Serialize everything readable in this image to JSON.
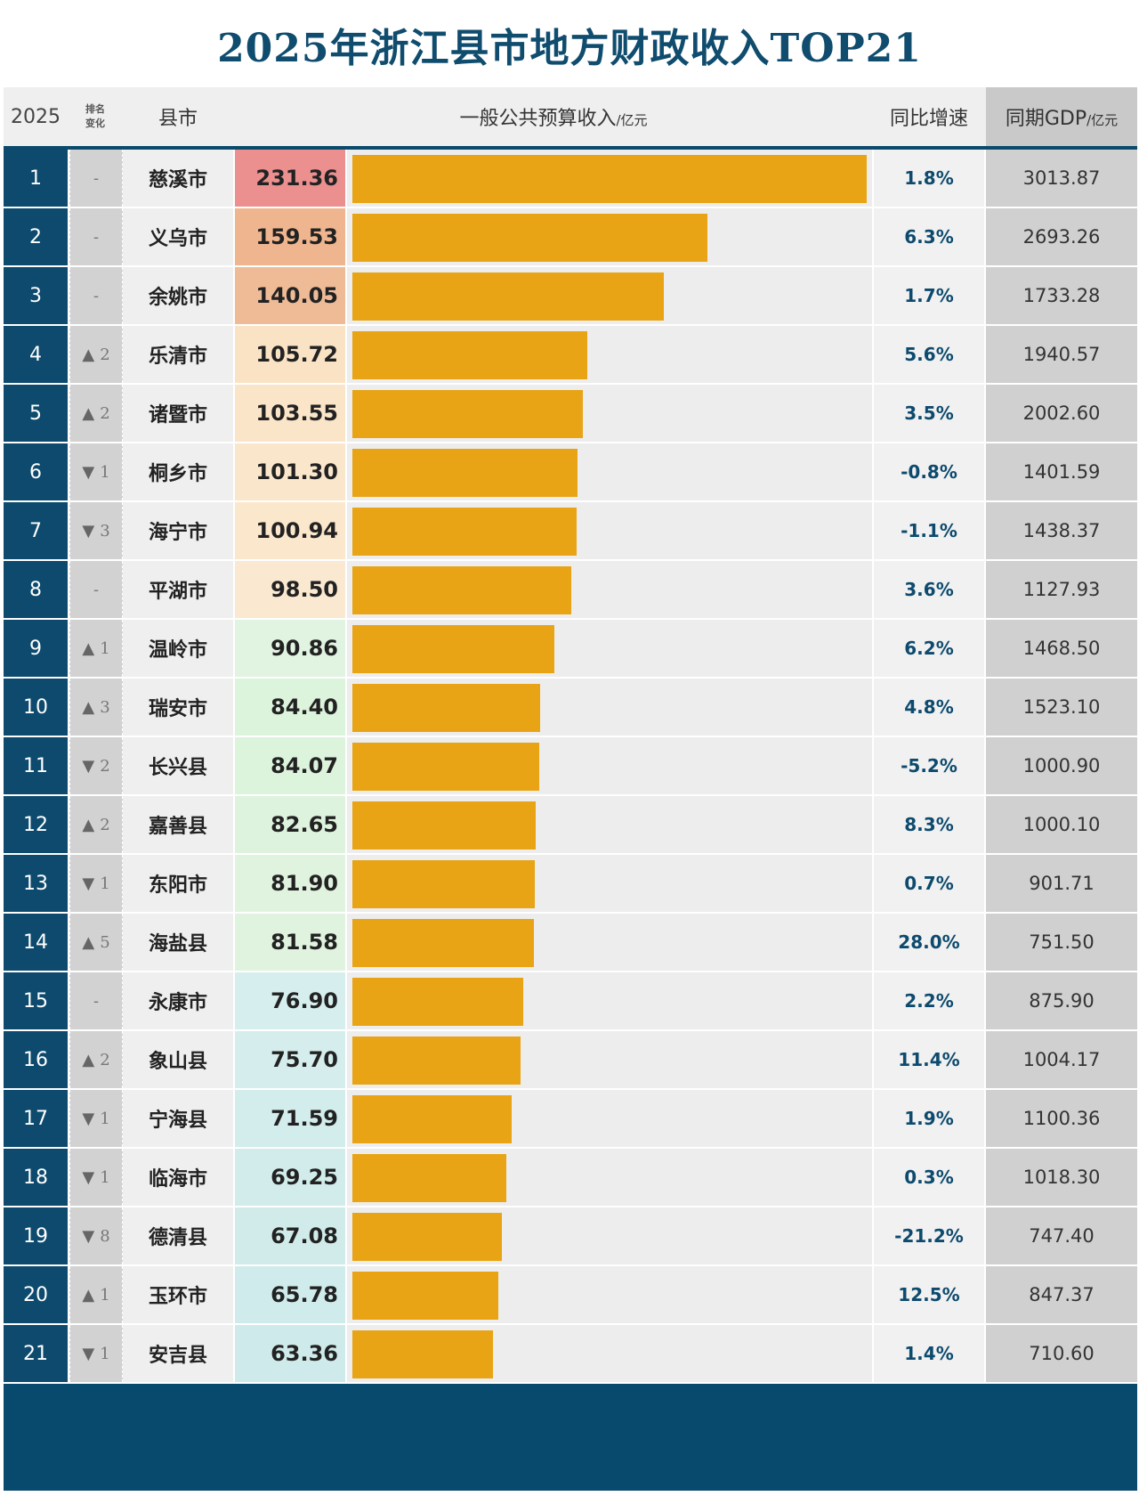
{
  "title": "2025年浙江县市地方财政收入TOP21",
  "header": {
    "year": "2025",
    "rank_change_line1": "排名",
    "rank_change_line2": "变化",
    "name": "县市",
    "revenue": "一般公共预算收入",
    "revenue_unit": "/亿元",
    "growth": "同比增速",
    "gdp": "同期GDP",
    "gdp_unit": "/亿元"
  },
  "chart_data": {
    "type": "bar",
    "title": "2025年浙江县市地方财政收入TOP21",
    "xlabel": "一般公共预算收入/亿元",
    "ylabel": "县市",
    "xlim": [
      0,
      231.36
    ],
    "categories": [
      "慈溪市",
      "义乌市",
      "余姚市",
      "乐清市",
      "诸暨市",
      "桐乡市",
      "海宁市",
      "平湖市",
      "温岭市",
      "瑞安市",
      "长兴县",
      "嘉善县",
      "东阳市",
      "海盐县",
      "永康市",
      "象山县",
      "宁海县",
      "临海市",
      "德清县",
      "玉环市",
      "安吉县"
    ],
    "values": [
      231.36,
      159.53,
      140.05,
      105.72,
      103.55,
      101.3,
      100.94,
      98.5,
      90.86,
      84.4,
      84.07,
      82.65,
      81.9,
      81.58,
      76.9,
      75.7,
      71.59,
      69.25,
      67.08,
      65.78,
      63.36
    ],
    "rows": [
      {
        "rank": "1",
        "dir": "none",
        "change": "-",
        "name": "慈溪市",
        "revenue": "231.36",
        "growth": "1.8%",
        "gdp": "3013.87",
        "color": "#eb8f8f"
      },
      {
        "rank": "2",
        "dir": "none",
        "change": "-",
        "name": "义乌市",
        "revenue": "159.53",
        "growth": "6.3%",
        "gdp": "2693.26",
        "color": "#efb58f"
      },
      {
        "rank": "3",
        "dir": "none",
        "change": "-",
        "name": "余姚市",
        "revenue": "140.05",
        "growth": "1.7%",
        "gdp": "1733.28",
        "color": "#efbb97"
      },
      {
        "rank": "4",
        "dir": "up",
        "change": "2",
        "name": "乐清市",
        "revenue": "105.72",
        "growth": "5.6%",
        "gdp": "1940.57",
        "color": "#fae3c4"
      },
      {
        "rank": "5",
        "dir": "up",
        "change": "2",
        "name": "诸暨市",
        "revenue": "103.55",
        "growth": "3.5%",
        "gdp": "2002.60",
        "color": "#fae5c8"
      },
      {
        "rank": "6",
        "dir": "down",
        "change": "1",
        "name": "桐乡市",
        "revenue": "101.30",
        "growth": "-0.8%",
        "gdp": "1401.59",
        "color": "#fae6ca"
      },
      {
        "rank": "7",
        "dir": "down",
        "change": "3",
        "name": "海宁市",
        "revenue": "100.94",
        "growth": "-1.1%",
        "gdp": "1438.37",
        "color": "#fae7cc"
      },
      {
        "rank": "8",
        "dir": "none",
        "change": "-",
        "name": "平湖市",
        "revenue": "98.50",
        "growth": "3.6%",
        "gdp": "1127.93",
        "color": "#fae9d0"
      },
      {
        "rank": "9",
        "dir": "up",
        "change": "1",
        "name": "温岭市",
        "revenue": "90.86",
        "growth": "6.2%",
        "gdp": "1468.50",
        "color": "#e1f3e1"
      },
      {
        "rank": "10",
        "dir": "up",
        "change": "3",
        "name": "瑞安市",
        "revenue": "84.40",
        "growth": "4.8%",
        "gdp": "1523.10",
        "color": "#dcf3dc"
      },
      {
        "rank": "11",
        "dir": "down",
        "change": "2",
        "name": "长兴县",
        "revenue": "84.07",
        "growth": "-5.2%",
        "gdp": "1000.90",
        "color": "#dcf3dc"
      },
      {
        "rank": "12",
        "dir": "up",
        "change": "2",
        "name": "嘉善县",
        "revenue": "82.65",
        "growth": "8.3%",
        "gdp": "1000.10",
        "color": "#def3dd"
      },
      {
        "rank": "13",
        "dir": "down",
        "change": "1",
        "name": "东阳市",
        "revenue": "81.90",
        "growth": "0.7%",
        "gdp": "901.71",
        "color": "#e0f3df"
      },
      {
        "rank": "14",
        "dir": "up",
        "change": "5",
        "name": "海盐县",
        "revenue": "81.58",
        "growth": "28.0%",
        "gdp": "751.50",
        "color": "#e0f3df"
      },
      {
        "rank": "15",
        "dir": "none",
        "change": "-",
        "name": "永康市",
        "revenue": "76.90",
        "growth": "2.2%",
        "gdp": "875.90",
        "color": "#d7eeee"
      },
      {
        "rank": "16",
        "dir": "up",
        "change": "2",
        "name": "象山县",
        "revenue": "75.70",
        "growth": "11.4%",
        "gdp": "1004.17",
        "color": "#d5eded"
      },
      {
        "rank": "17",
        "dir": "down",
        "change": "1",
        "name": "宁海县",
        "revenue": "71.59",
        "growth": "1.9%",
        "gdp": "1100.36",
        "color": "#d3ecec"
      },
      {
        "rank": "18",
        "dir": "down",
        "change": "1",
        "name": "临海市",
        "revenue": "69.25",
        "growth": "0.3%",
        "gdp": "1018.30",
        "color": "#d2ecec"
      },
      {
        "rank": "19",
        "dir": "down",
        "change": "8",
        "name": "德清县",
        "revenue": "67.08",
        "growth": "-21.2%",
        "gdp": "747.40",
        "color": "#d1ebeb"
      },
      {
        "rank": "20",
        "dir": "up",
        "change": "1",
        "name": "玉环市",
        "revenue": "65.78",
        "growth": "12.5%",
        "gdp": "847.37",
        "color": "#d0ebeb"
      },
      {
        "rank": "21",
        "dir": "down",
        "change": "1",
        "name": "安吉县",
        "revenue": "63.36",
        "growth": "1.4%",
        "gdp": "710.60",
        "color": "#cfeaea"
      }
    ]
  }
}
